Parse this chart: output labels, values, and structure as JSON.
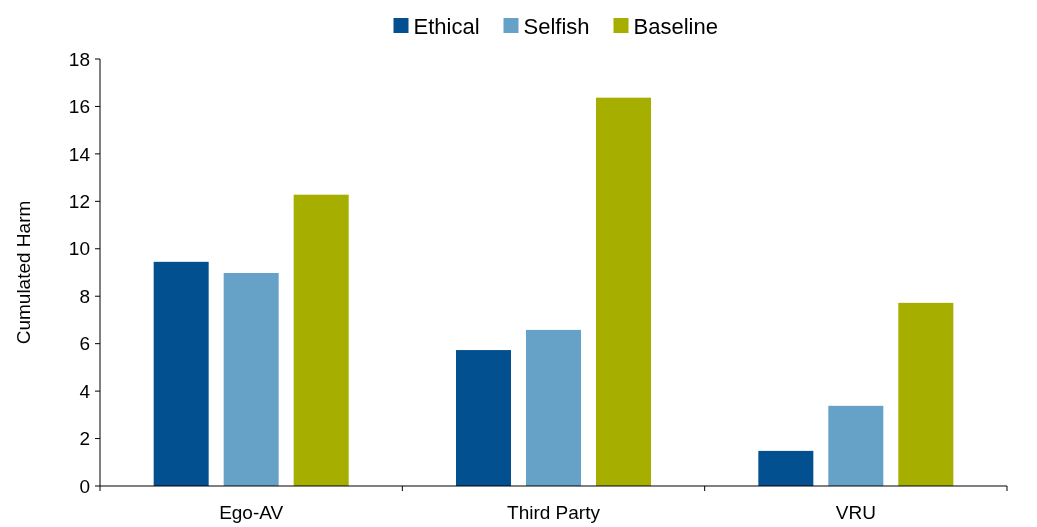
{
  "chart_data": {
    "type": "bar",
    "ylabel": "Cumulated Harm",
    "categories": [
      "Ego-AV",
      "Third Party",
      "VRU"
    ],
    "series": [
      {
        "name": "Ethical",
        "color": "#02508f",
        "values": [
          9.45,
          5.73,
          1.48
        ]
      },
      {
        "name": "Selfish",
        "color": "#66a2c8",
        "values": [
          8.98,
          6.58,
          3.38
        ]
      },
      {
        "name": "Baseline",
        "color": "#a6ae00",
        "values": [
          12.28,
          16.37,
          7.72
        ]
      }
    ],
    "ylim": [
      0,
      18
    ],
    "yticks": [
      0,
      2,
      4,
      6,
      8,
      10,
      12,
      14,
      16,
      18
    ],
    "grid": false,
    "legend": "top"
  }
}
